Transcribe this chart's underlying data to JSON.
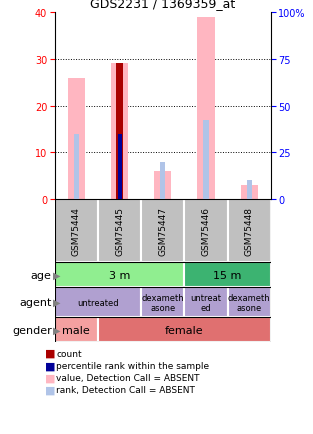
{
  "title": "GDS2231 / 1369359_at",
  "samples": [
    "GSM75444",
    "GSM75445",
    "GSM75447",
    "GSM75446",
    "GSM75448"
  ],
  "ylim_left": [
    0,
    40
  ],
  "ylim_right": [
    0,
    100
  ],
  "y_ticks_left": [
    0,
    10,
    20,
    30,
    40
  ],
  "y_ticks_right": [
    0,
    25,
    50,
    75,
    100
  ],
  "bar_value": [
    26,
    29,
    6,
    39,
    3
  ],
  "bar_rank_absent": [
    14,
    14,
    8,
    17,
    4
  ],
  "count_value": [
    0,
    29,
    0,
    0,
    0
  ],
  "percentile_value": [
    0,
    14,
    0,
    0,
    0
  ],
  "color_value_absent": "#FFB6C1",
  "color_rank_absent": "#B0C4E8",
  "color_count": "#AA0000",
  "color_percentile": "#000099",
  "age_labels": [
    [
      "3 m",
      0,
      3,
      "#90EE90"
    ],
    [
      "15 m",
      3,
      5,
      "#3CB371"
    ]
  ],
  "agent_spans": [
    [
      0,
      2,
      "untreated"
    ],
    [
      2,
      3,
      "dexameth\nasone"
    ],
    [
      3,
      4,
      "untreat\ned"
    ],
    [
      4,
      5,
      "dexameth\nasone"
    ]
  ],
  "agent_color": "#B0A0D0",
  "gender_spans": [
    [
      0,
      1,
      "male",
      "#F4A0A0"
    ],
    [
      1,
      5,
      "female",
      "#E07070"
    ]
  ],
  "row_labels": [
    "age",
    "agent",
    "gender"
  ],
  "legend_items": [
    [
      "count",
      "#AA0000"
    ],
    [
      "percentile rank within the sample",
      "#000099"
    ],
    [
      "value, Detection Call = ABSENT",
      "#FFB6C1"
    ],
    [
      "rank, Detection Call = ABSENT",
      "#B0C4E8"
    ]
  ],
  "bar_width": 0.4,
  "rank_bar_width": 0.12,
  "count_bar_width": 0.18,
  "percentile_bar_width": 0.09,
  "sample_bg_color": "#C0C0C0"
}
